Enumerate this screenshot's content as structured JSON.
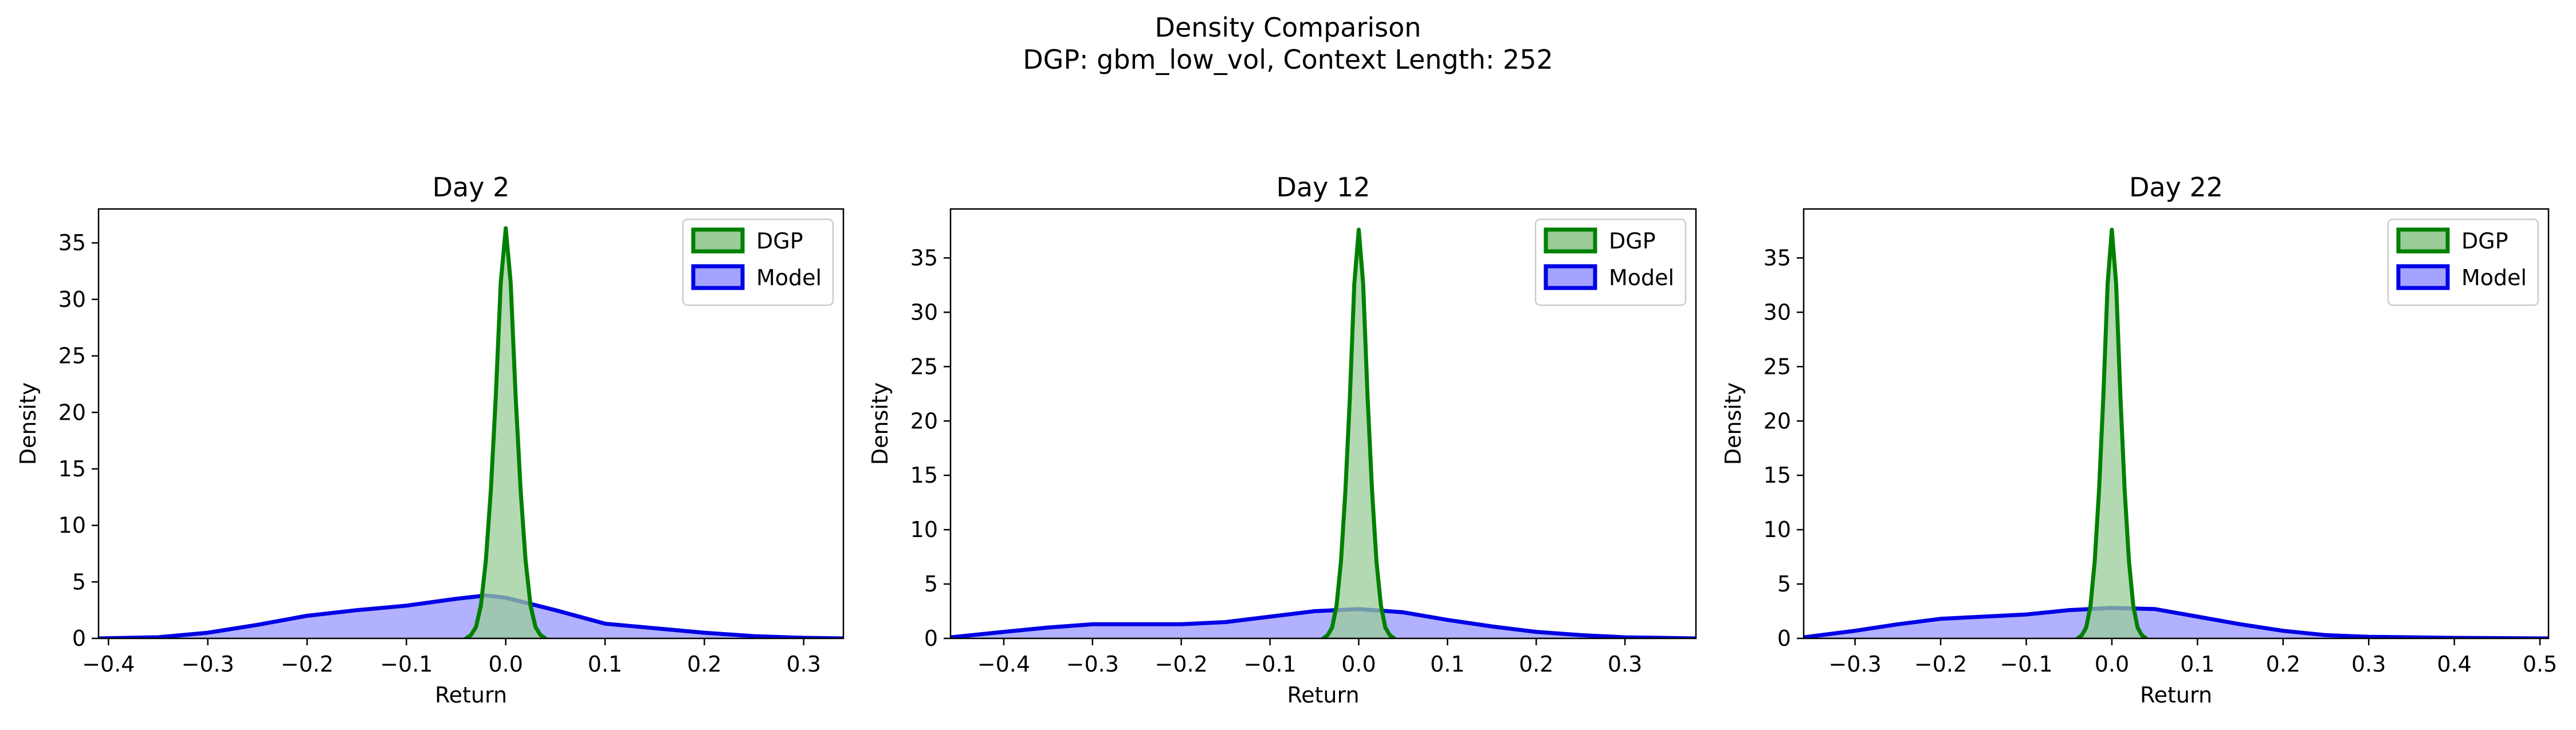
{
  "figure": {
    "title_line1": "Density Comparison",
    "title_line2": "DGP: gbm_low_vol, Context Length: 252"
  },
  "colors": {
    "dgp_line": "#008000",
    "dgp_fill": "#99cc99",
    "model_line": "#0000e6",
    "model_fill": "#a3a3ff"
  },
  "chart_data": [
    {
      "type": "area",
      "title": "Day 2",
      "xlabel": "Return",
      "ylabel": "Density",
      "xlim": [
        -0.41,
        0.34
      ],
      "ylim": [
        0,
        38
      ],
      "xticks": [
        -0.4,
        -0.3,
        -0.2,
        -0.1,
        0.0,
        0.1,
        0.2,
        0.3
      ],
      "xtick_labels": [
        "−0.4",
        "−0.3",
        "−0.2",
        "−0.1",
        "0.0",
        "0.1",
        "0.2",
        "0.3"
      ],
      "yticks": [
        0,
        5,
        10,
        15,
        20,
        25,
        30,
        35
      ],
      "legend": "top-right",
      "series": [
        {
          "name": "DGP",
          "x": [
            -0.04,
            -0.035,
            -0.03,
            -0.025,
            -0.02,
            -0.015,
            -0.01,
            -0.005,
            0.0,
            0.005,
            0.01,
            0.015,
            0.02,
            0.025,
            0.03,
            0.035,
            0.04
          ],
          "y": [
            0,
            0.3,
            1.0,
            2.9,
            6.9,
            13.1,
            21.4,
            31.5,
            36.3,
            31.5,
            21.4,
            13.1,
            6.9,
            2.9,
            1.0,
            0.3,
            0
          ]
        },
        {
          "name": "Model",
          "x": [
            -0.41,
            -0.35,
            -0.3,
            -0.25,
            -0.2,
            -0.15,
            -0.1,
            -0.05,
            -0.02,
            0.0,
            0.05,
            0.1,
            0.15,
            0.2,
            0.25,
            0.3,
            0.34
          ],
          "y": [
            0.0,
            0.1,
            0.5,
            1.2,
            2.0,
            2.5,
            2.9,
            3.5,
            3.8,
            3.6,
            2.5,
            1.3,
            0.9,
            0.5,
            0.2,
            0.05,
            0.0
          ]
        }
      ]
    },
    {
      "type": "area",
      "title": "Day 12",
      "xlabel": "Return",
      "ylabel": "Density",
      "xlim": [
        -0.46,
        0.38
      ],
      "ylim": [
        0,
        39.5
      ],
      "xticks": [
        -0.4,
        -0.3,
        -0.2,
        -0.1,
        0.0,
        0.1,
        0.2,
        0.3
      ],
      "xtick_labels": [
        "−0.4",
        "−0.3",
        "−0.2",
        "−0.1",
        "0.0",
        "0.1",
        "0.2",
        "0.3"
      ],
      "yticks": [
        0,
        5,
        10,
        15,
        20,
        25,
        30,
        35
      ],
      "legend": "top-right",
      "series": [
        {
          "name": "DGP",
          "x": [
            -0.04,
            -0.035,
            -0.03,
            -0.025,
            -0.02,
            -0.015,
            -0.01,
            -0.005,
            0.0,
            0.005,
            0.01,
            0.015,
            0.02,
            0.025,
            0.03,
            0.035,
            0.04
          ],
          "y": [
            0,
            0.3,
            1.0,
            3.0,
            7.1,
            13.6,
            22.2,
            32.6,
            37.6,
            32.6,
            22.2,
            13.6,
            7.1,
            3.0,
            1.0,
            0.3,
            0
          ]
        },
        {
          "name": "Model",
          "x": [
            -0.46,
            -0.4,
            -0.35,
            -0.3,
            -0.25,
            -0.2,
            -0.15,
            -0.1,
            -0.05,
            0.0,
            0.05,
            0.1,
            0.15,
            0.2,
            0.25,
            0.3,
            0.38
          ],
          "y": [
            0.1,
            0.6,
            1.0,
            1.3,
            1.3,
            1.3,
            1.5,
            2.0,
            2.5,
            2.7,
            2.4,
            1.7,
            1.1,
            0.6,
            0.3,
            0.1,
            0.0
          ]
        }
      ]
    },
    {
      "type": "area",
      "title": "Day 22",
      "xlabel": "Return",
      "ylabel": "Density",
      "xlim": [
        -0.36,
        0.51
      ],
      "ylim": [
        0,
        39.5
      ],
      "xticks": [
        -0.3,
        -0.2,
        -0.1,
        0.0,
        0.1,
        0.2,
        0.3,
        0.4,
        0.5
      ],
      "xtick_labels": [
        "−0.3",
        "−0.2",
        "−0.1",
        "0.0",
        "0.1",
        "0.2",
        "0.3",
        "0.4",
        "0.5"
      ],
      "yticks": [
        0,
        5,
        10,
        15,
        20,
        25,
        30,
        35
      ],
      "legend": "top-right",
      "series": [
        {
          "name": "DGP",
          "x": [
            -0.04,
            -0.035,
            -0.03,
            -0.025,
            -0.02,
            -0.015,
            -0.01,
            -0.005,
            0.0,
            0.005,
            0.01,
            0.015,
            0.02,
            0.025,
            0.03,
            0.035,
            0.04
          ],
          "y": [
            0,
            0.3,
            1.0,
            3.0,
            7.1,
            13.6,
            22.2,
            32.6,
            37.6,
            32.6,
            22.2,
            13.6,
            7.1,
            3.0,
            1.0,
            0.3,
            0
          ]
        },
        {
          "name": "Model",
          "x": [
            -0.36,
            -0.3,
            -0.25,
            -0.2,
            -0.15,
            -0.1,
            -0.05,
            0.0,
            0.05,
            0.1,
            0.15,
            0.2,
            0.25,
            0.3,
            0.4,
            0.51
          ],
          "y": [
            0.1,
            0.7,
            1.3,
            1.8,
            2.0,
            2.2,
            2.6,
            2.8,
            2.7,
            2.0,
            1.3,
            0.7,
            0.3,
            0.15,
            0.05,
            0.0
          ]
        }
      ]
    }
  ]
}
